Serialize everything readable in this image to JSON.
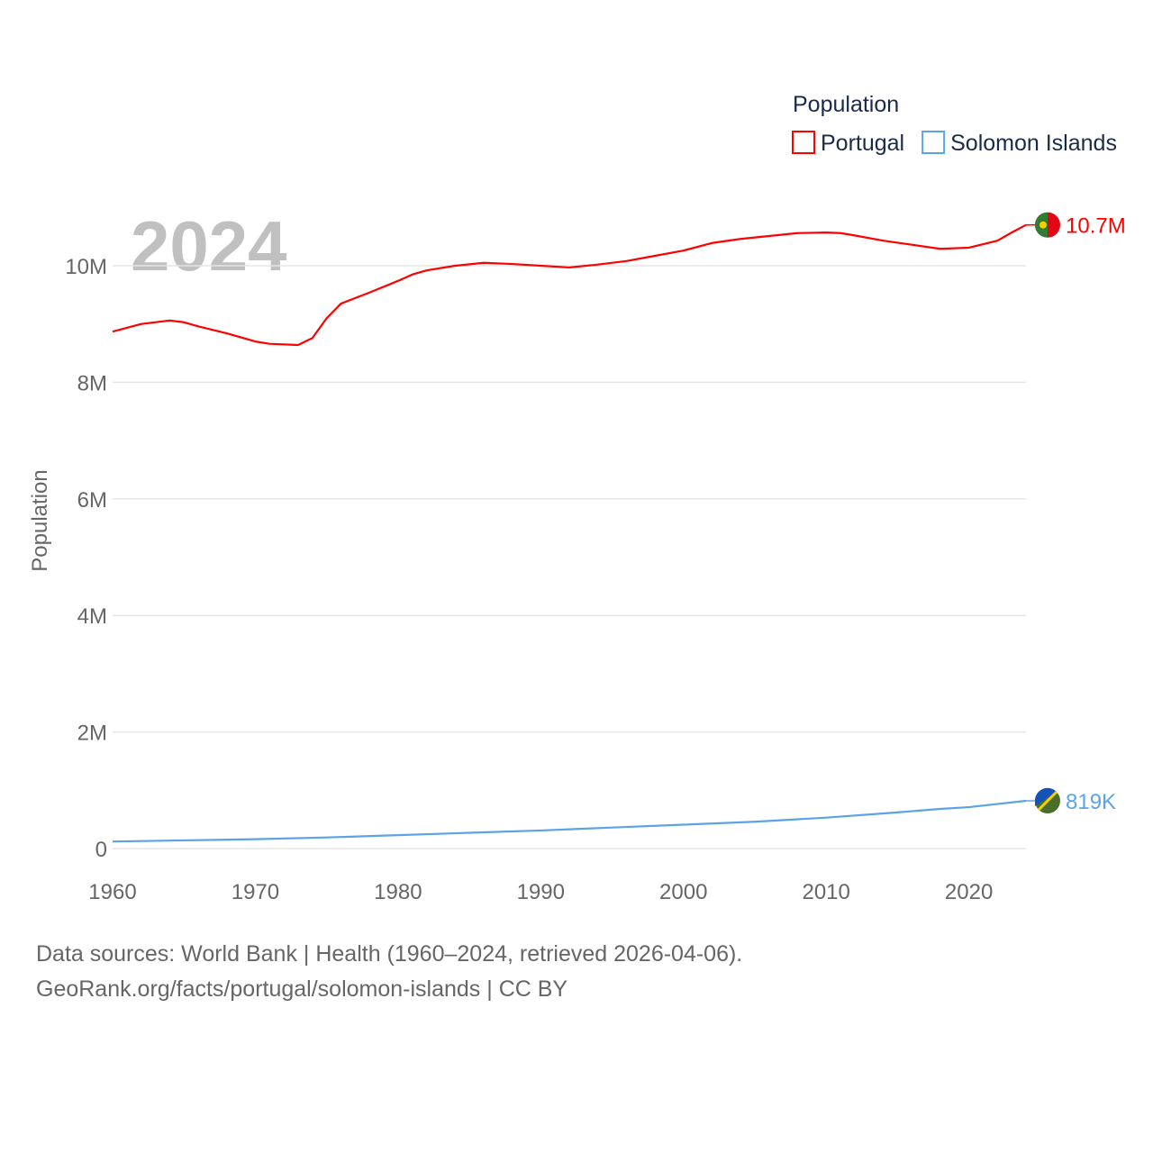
{
  "chart_data": {
    "type": "line",
    "year_label": "2024",
    "ylabel": "Population",
    "xlabel": "",
    "legend_title": "Population",
    "legend_position": "top-right",
    "xlim": [
      1960,
      2024
    ],
    "ylim": [
      0,
      11000000
    ],
    "x_ticks": [
      "1960",
      "1970",
      "1980",
      "1990",
      "2000",
      "2010",
      "2020"
    ],
    "x_tick_values": [
      1960,
      1970,
      1980,
      1990,
      2000,
      2010,
      2020
    ],
    "y_ticks": [
      "0",
      "2M",
      "4M",
      "6M",
      "8M",
      "10M"
    ],
    "y_tick_values": [
      0,
      2000000,
      4000000,
      6000000,
      8000000,
      10000000
    ],
    "grid": true,
    "series": [
      {
        "name": "Portugal",
        "color": "#ff0000",
        "end_label": "10.7M",
        "x": [
          1960,
          1962,
          1964,
          1965,
          1966,
          1968,
          1970,
          1971,
          1973,
          1974,
          1975,
          1976,
          1978,
          1980,
          1981,
          1982,
          1984,
          1986,
          1988,
          1990,
          1992,
          1994,
          1996,
          1998,
          2000,
          2002,
          2004,
          2006,
          2008,
          2010,
          2011,
          2012,
          2014,
          2016,
          2018,
          2020,
          2022,
          2023,
          2024
        ],
        "y": [
          8.87,
          9.0,
          9.06,
          9.03,
          8.96,
          8.84,
          8.7,
          8.66,
          8.64,
          8.76,
          9.1,
          9.35,
          9.54,
          9.74,
          9.85,
          9.92,
          10.0,
          10.05,
          10.03,
          10.0,
          9.97,
          10.02,
          10.08,
          10.17,
          10.26,
          10.39,
          10.46,
          10.51,
          10.56,
          10.57,
          10.56,
          10.52,
          10.43,
          10.36,
          10.29,
          10.31,
          10.43,
          10.57,
          10.7
        ],
        "y_unit": "millions"
      },
      {
        "name": "Solomon Islands",
        "color": "#5ba3e8",
        "end_label": "819K",
        "x": [
          1960,
          1965,
          1970,
          1975,
          1980,
          1985,
          1990,
          1995,
          2000,
          2005,
          2010,
          2015,
          2018,
          2020,
          2024
        ],
        "y": [
          0.12,
          0.14,
          0.16,
          0.19,
          0.23,
          0.27,
          0.31,
          0.36,
          0.41,
          0.46,
          0.53,
          0.62,
          0.68,
          0.71,
          0.819
        ],
        "y_unit": "millions"
      }
    ]
  },
  "footer": {
    "line1": "Data sources: World Bank | Health (1960–2024, retrieved 2026-04-06).",
    "line2": "GeoRank.org/facts/portugal/solomon-islands | CC BY"
  }
}
